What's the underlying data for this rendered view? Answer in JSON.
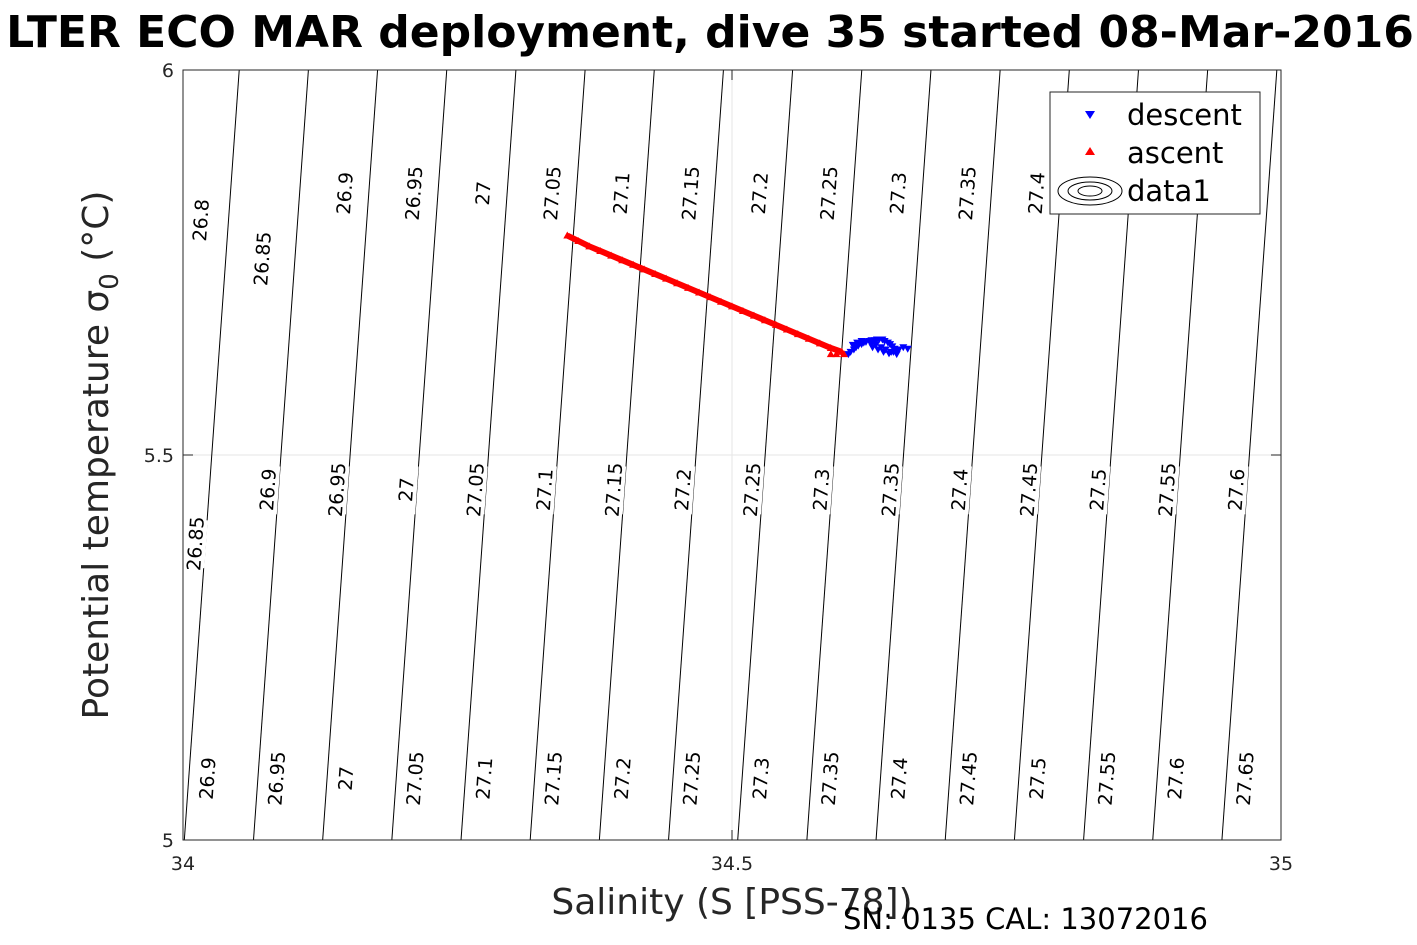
{
  "chart_data": {
    "type": "scatter",
    "title": "LTER ECO MAR deployment, dive 35 started 08-Mar-2016",
    "xlabel": "Salinity (S [PSS-78])",
    "ylabel_main": "Potential temperature ",
    "ylabel_sigma": "σ",
    "ylabel_sub": "0",
    "ylabel_unit": " (°C)",
    "xlim": [
      34,
      35
    ],
    "ylim": [
      5,
      6
    ],
    "x_ticks": [
      34,
      34.5,
      35
    ],
    "x_tick_labels": [
      "34",
      "34.5",
      "35"
    ],
    "y_ticks": [
      5,
      5.5,
      6
    ],
    "y_tick_labels": [
      "5",
      "5.5",
      "6"
    ],
    "grid": true,
    "legend_position": "top-right",
    "footer": "SN: 0135  CAL: 13072016",
    "colors": {
      "descent": "#0000ff",
      "ascent": "#ff0000",
      "contour": "#000000",
      "grid": "#e6e6e6"
    },
    "legend": [
      {
        "name": "descent",
        "marker": "triangle-down",
        "color": "#0000ff"
      },
      {
        "name": "ascent",
        "marker": "triangle-up",
        "color": "#ff0000"
      },
      {
        "name": "data1",
        "marker": "contour",
        "color": "#000000"
      }
    ],
    "contours": {
      "levels": [
        26.8,
        26.85,
        26.9,
        26.95,
        27,
        27.05,
        27.1,
        27.15,
        27.2,
        27.25,
        27.3,
        27.35,
        27.4,
        27.45,
        27.5,
        27.55,
        27.6,
        27.65
      ],
      "labels": [
        {
          "text": "26.8",
          "s": 34.016,
          "t": 5.805
        },
        {
          "text": "26.85",
          "s": 34.072,
          "t": 5.755
        },
        {
          "text": "26.9",
          "s": 34.147,
          "t": 5.84
        },
        {
          "text": "26.95",
          "s": 34.21,
          "t": 5.84
        },
        {
          "text": "27",
          "s": 34.273,
          "t": 5.84
        },
        {
          "text": "27.05",
          "s": 34.336,
          "t": 5.84
        },
        {
          "text": "27.1",
          "s": 34.399,
          "t": 5.84
        },
        {
          "text": "27.15",
          "s": 34.462,
          "t": 5.84
        },
        {
          "text": "27.2",
          "s": 34.525,
          "t": 5.84
        },
        {
          "text": "27.25",
          "s": 34.588,
          "t": 5.84
        },
        {
          "text": "27.3",
          "s": 34.651,
          "t": 5.84
        },
        {
          "text": "27.35",
          "s": 34.714,
          "t": 5.84
        },
        {
          "text": "27.4",
          "s": 34.777,
          "t": 5.84
        },
        {
          "text": "26.85",
          "s": 34.011,
          "t": 5.385
        },
        {
          "text": "26.9",
          "s": 34.077,
          "t": 5.455
        },
        {
          "text": "26.95",
          "s": 34.14,
          "t": 5.455
        },
        {
          "text": "27",
          "s": 34.203,
          "t": 5.455
        },
        {
          "text": "27.05",
          "s": 34.266,
          "t": 5.455
        },
        {
          "text": "27.1",
          "s": 34.329,
          "t": 5.455
        },
        {
          "text": "27.15",
          "s": 34.392,
          "t": 5.455
        },
        {
          "text": "27.2",
          "s": 34.455,
          "t": 5.455
        },
        {
          "text": "27.25",
          "s": 34.518,
          "t": 5.455
        },
        {
          "text": "27.3",
          "s": 34.581,
          "t": 5.455
        },
        {
          "text": "27.35",
          "s": 34.644,
          "t": 5.455
        },
        {
          "text": "27.4",
          "s": 34.707,
          "t": 5.455
        },
        {
          "text": "27.45",
          "s": 34.77,
          "t": 5.455
        },
        {
          "text": "27.5",
          "s": 34.833,
          "t": 5.455
        },
        {
          "text": "27.55",
          "s": 34.896,
          "t": 5.455
        },
        {
          "text": "27.6",
          "s": 34.959,
          "t": 5.455
        },
        {
          "text": "26.9",
          "s": 34.022,
          "t": 5.08
        },
        {
          "text": "26.95",
          "s": 34.085,
          "t": 5.08
        },
        {
          "text": "27",
          "s": 34.148,
          "t": 5.08
        },
        {
          "text": "27.05",
          "s": 34.211,
          "t": 5.08
        },
        {
          "text": "27.1",
          "s": 34.274,
          "t": 5.08
        },
        {
          "text": "27.15",
          "s": 34.337,
          "t": 5.08
        },
        {
          "text": "27.2",
          "s": 34.4,
          "t": 5.08
        },
        {
          "text": "27.25",
          "s": 34.463,
          "t": 5.08
        },
        {
          "text": "27.3",
          "s": 34.526,
          "t": 5.08
        },
        {
          "text": "27.35",
          "s": 34.589,
          "t": 5.08
        },
        {
          "text": "27.4",
          "s": 34.652,
          "t": 5.08
        },
        {
          "text": "27.45",
          "s": 34.715,
          "t": 5.08
        },
        {
          "text": "27.5",
          "s": 34.778,
          "t": 5.08
        },
        {
          "text": "27.55",
          "s": 34.841,
          "t": 5.08
        },
        {
          "text": "27.6",
          "s": 34.904,
          "t": 5.08
        },
        {
          "text": "27.65",
          "s": 34.967,
          "t": 5.08
        }
      ]
    },
    "series": [
      {
        "name": "descent",
        "x": [
          34.606,
          34.608,
          34.611,
          34.613,
          34.615,
          34.618,
          34.62,
          34.622,
          34.625,
          34.627,
          34.63,
          34.632,
          34.634,
          34.637,
          34.639,
          34.642,
          34.644,
          34.646,
          34.648,
          34.649,
          34.65,
          34.645,
          34.64,
          34.636,
          34.631,
          34.627,
          34.622,
          34.618,
          34.614,
          34.61,
          34.628,
          34.633,
          34.638,
          34.643,
          34.647,
          34.652,
          34.656,
          34.66
        ],
        "y": [
          5.631,
          5.634,
          5.637,
          5.64,
          5.642,
          5.644,
          5.646,
          5.647,
          5.648,
          5.649,
          5.649,
          5.65,
          5.65,
          5.65,
          5.648,
          5.646,
          5.644,
          5.641,
          5.638,
          5.634,
          5.631,
          5.634,
          5.637,
          5.64,
          5.643,
          5.645,
          5.647,
          5.648,
          5.646,
          5.643,
          5.64,
          5.637,
          5.634,
          5.632,
          5.634,
          5.637,
          5.64,
          5.638
        ]
      },
      {
        "name": "ascent",
        "x": [
          34.35,
          34.36,
          34.37,
          34.38,
          34.39,
          34.4,
          34.41,
          34.42,
          34.43,
          34.44,
          34.45,
          34.46,
          34.47,
          34.48,
          34.49,
          34.5,
          34.51,
          34.52,
          34.53,
          34.54,
          34.55,
          34.56,
          34.57,
          34.58,
          34.59,
          34.6,
          34.59,
          34.595,
          34.602
        ],
        "y": [
          5.785,
          5.778,
          5.771,
          5.765,
          5.759,
          5.753,
          5.747,
          5.741,
          5.735,
          5.729,
          5.723,
          5.717,
          5.711,
          5.705,
          5.699,
          5.693,
          5.687,
          5.681,
          5.675,
          5.669,
          5.663,
          5.657,
          5.651,
          5.645,
          5.639,
          5.634,
          5.631,
          5.631,
          5.631
        ]
      }
    ]
  }
}
